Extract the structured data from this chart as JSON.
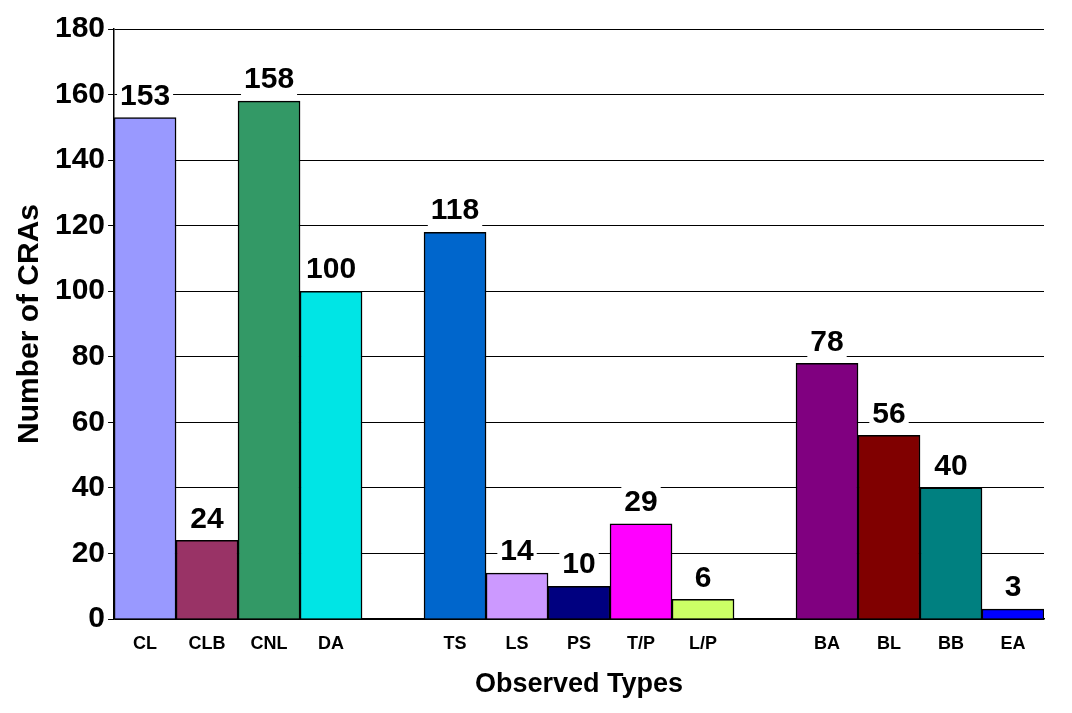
{
  "chart_data": {
    "type": "bar",
    "xlabel": "Observed Types",
    "ylabel": "Number of CRAs",
    "categories": [
      "CL",
      "CLB",
      "CNL",
      "DA",
      null,
      "TS",
      "LS",
      "PS",
      "T/P",
      "L/P",
      null,
      "BA",
      "BL",
      "BB",
      "EA"
    ],
    "values": [
      153,
      24,
      158,
      100,
      null,
      118,
      14,
      10,
      29,
      6,
      null,
      78,
      56,
      40,
      3
    ],
    "colors": [
      "#9999ff",
      "#993366",
      "#339966",
      "#00e5e5",
      null,
      "#0066cc",
      "#cc99ff",
      "#000080",
      "#ff00ff",
      "#ccff66",
      null,
      "#800080",
      "#800000",
      "#008080",
      "#0000ff"
    ],
    "ylim": [
      0,
      180
    ],
    "yticks": [
      0,
      20,
      40,
      60,
      80,
      100,
      120,
      140,
      160,
      180
    ],
    "grid": "y",
    "data_labels": true
  }
}
